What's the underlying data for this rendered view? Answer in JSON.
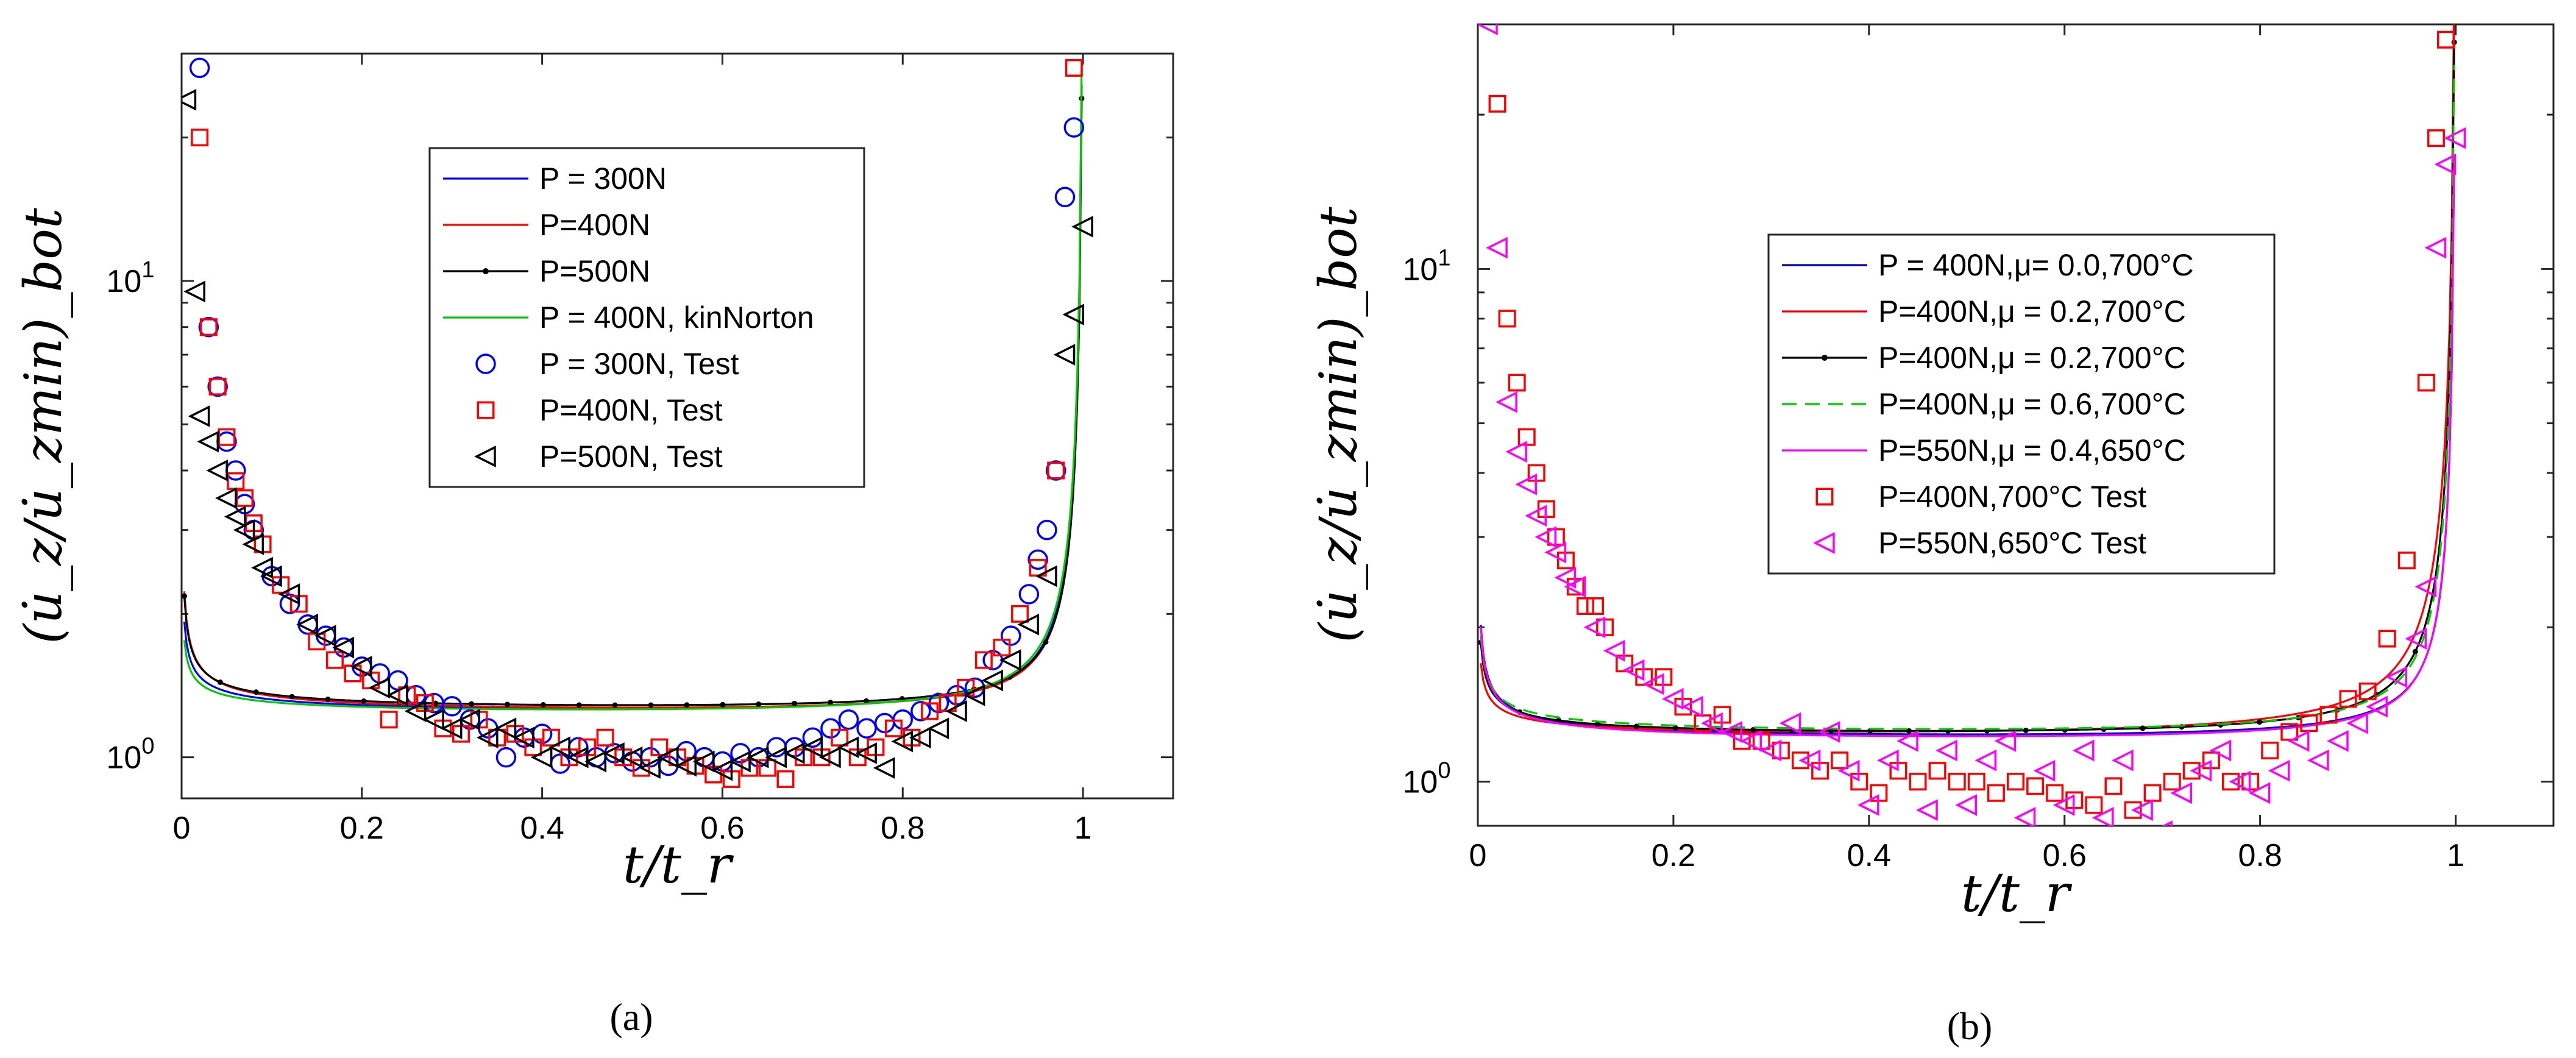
{
  "chart_data": [
    {
      "type": "line",
      "panel_label": "(a)",
      "xlabel": "t/t_r",
      "ylabel": "(u̇_z/u̇_zmin)_bot",
      "xlim": [
        0,
        1.1
      ],
      "ylim": [
        0.82,
        30
      ],
      "yscale": "log",
      "xticks": [
        0,
        0.2,
        0.4,
        0.6,
        0.8,
        1
      ],
      "xtick_labels": [
        "0",
        "0.2",
        "0.4",
        "0.6",
        "0.8",
        "1"
      ],
      "yticks_labeled": [
        {
          "value": 1,
          "base": "10",
          "exp": "0"
        },
        {
          "value": 10,
          "base": "10",
          "exp": "1"
        }
      ],
      "legend_position": "upper-center",
      "series": [
        {
          "name": "P = 300N",
          "kind": "line",
          "color": "#0000ff",
          "curve": {
            "A": 1.18,
            "B": 0.034,
            "C": 0.5,
            "D": 0.0118,
            "E": 1.15,
            "scale": 1.0
          }
        },
        {
          "name": "P=400N",
          "kind": "line",
          "color": "#ff0000",
          "curve": {
            "A": 1.18,
            "B": 0.036,
            "C": 0.55,
            "D": 0.0112,
            "E": 1.15,
            "scale": 1.0
          }
        },
        {
          "name": "P=500N",
          "kind": "line-dot",
          "color": "#000000",
          "curve": {
            "A": 1.2,
            "B": 0.033,
            "C": 0.55,
            "D": 0.0108,
            "E": 1.15,
            "scale": 1.0
          }
        },
        {
          "name": "P = 400N, kinNorton",
          "kind": "line",
          "color": "#00cc00",
          "curve": {
            "A": 1.17,
            "B": 0.036,
            "C": 0.45,
            "D": 0.013,
            "E": 1.15,
            "scale": 1.0
          }
        },
        {
          "name": "P = 300N, Test",
          "kind": "circle",
          "color": "#0000ff",
          "x": [
            0.02,
            0.03,
            0.04,
            0.05,
            0.06,
            0.07,
            0.08,
            0.1,
            0.12,
            0.14,
            0.16,
            0.18,
            0.2,
            0.22,
            0.24,
            0.26,
            0.28,
            0.3,
            0.32,
            0.34,
            0.36,
            0.38,
            0.4,
            0.42,
            0.44,
            0.46,
            0.48,
            0.5,
            0.52,
            0.54,
            0.56,
            0.58,
            0.6,
            0.62,
            0.64,
            0.66,
            0.68,
            0.7,
            0.72,
            0.74,
            0.76,
            0.78,
            0.8,
            0.82,
            0.84,
            0.86,
            0.88,
            0.9,
            0.92,
            0.94,
            0.95,
            0.96,
            0.97,
            0.98,
            0.99
          ],
          "y": [
            28,
            8,
            6,
            4.6,
            4,
            3.4,
            3,
            2.4,
            2.1,
            1.9,
            1.8,
            1.7,
            1.55,
            1.5,
            1.45,
            1.35,
            1.3,
            1.28,
            1.2,
            1.15,
            1.0,
            1.1,
            1.12,
            0.97,
            1.05,
            1.0,
            1.02,
            0.98,
            1.0,
            0.96,
            1.03,
            1.0,
            0.98,
            1.02,
            1.0,
            1.05,
            1.05,
            1.1,
            1.15,
            1.2,
            1.15,
            1.18,
            1.2,
            1.25,
            1.3,
            1.35,
            1.4,
            1.6,
            1.8,
            2.2,
            2.6,
            3.0,
            4.0,
            15,
            21
          ]
        },
        {
          "name": "P=400N, Test",
          "kind": "square",
          "color": "#ff0000",
          "x": [
            0.02,
            0.03,
            0.04,
            0.05,
            0.06,
            0.07,
            0.08,
            0.09,
            0.11,
            0.13,
            0.15,
            0.17,
            0.19,
            0.21,
            0.23,
            0.25,
            0.27,
            0.29,
            0.31,
            0.33,
            0.35,
            0.37,
            0.39,
            0.41,
            0.43,
            0.45,
            0.47,
            0.49,
            0.51,
            0.53,
            0.55,
            0.57,
            0.59,
            0.61,
            0.63,
            0.65,
            0.67,
            0.69,
            0.71,
            0.73,
            0.75,
            0.77,
            0.79,
            0.81,
            0.83,
            0.85,
            0.87,
            0.89,
            0.91,
            0.93,
            0.95,
            0.97,
            0.99
          ],
          "y": [
            20,
            8,
            6,
            4.7,
            3.8,
            3.5,
            3.1,
            2.8,
            2.3,
            2.1,
            1.75,
            1.6,
            1.5,
            1.45,
            1.2,
            1.35,
            1.3,
            1.15,
            1.12,
            1.2,
            1.1,
            1.12,
            1.05,
            1.1,
            1.0,
            1.05,
            1.1,
            1.0,
            0.95,
            1.05,
            1.0,
            0.96,
            0.92,
            0.9,
            0.95,
            0.95,
            0.9,
            1.0,
            1.0,
            1.1,
            1.0,
            1.05,
            1.15,
            1.1,
            1.25,
            1.3,
            1.4,
            1.6,
            1.7,
            2.0,
            2.5,
            4.0,
            28
          ]
        },
        {
          "name": "P=500N, Test",
          "kind": "triangle-left",
          "color": "#000000",
          "x": [
            0.005,
            0.015,
            0.02,
            0.03,
            0.04,
            0.05,
            0.06,
            0.07,
            0.08,
            0.09,
            0.1,
            0.12,
            0.14,
            0.16,
            0.18,
            0.2,
            0.22,
            0.24,
            0.26,
            0.28,
            0.3,
            0.32,
            0.34,
            0.36,
            0.38,
            0.4,
            0.42,
            0.44,
            0.46,
            0.48,
            0.5,
            0.52,
            0.54,
            0.56,
            0.58,
            0.6,
            0.62,
            0.64,
            0.66,
            0.68,
            0.7,
            0.72,
            0.74,
            0.76,
            0.78,
            0.8,
            0.82,
            0.84,
            0.86,
            0.88,
            0.9,
            0.92,
            0.94,
            0.96,
            0.98,
            0.99,
            1.0
          ],
          "y": [
            24,
            9.5,
            5.2,
            4.6,
            4.0,
            3.5,
            3.2,
            3.0,
            2.8,
            2.5,
            2.4,
            2.2,
            1.9,
            1.8,
            1.7,
            1.55,
            1.4,
            1.35,
            1.25,
            1.2,
            1.15,
            1.2,
            1.1,
            1.15,
            1.1,
            1.0,
            1.05,
            1.0,
            0.98,
            1.02,
            1.0,
            0.95,
            1.0,
            0.96,
            0.98,
            0.94,
            0.98,
            1.0,
            1.0,
            1.02,
            1.05,
            1.0,
            1.05,
            1.02,
            0.95,
            1.08,
            1.1,
            1.15,
            1.25,
            1.35,
            1.45,
            1.6,
            1.9,
            2.4,
            7,
            8.5,
            13
          ]
        }
      ]
    },
    {
      "type": "line",
      "panel_label": "(b)",
      "xlabel": "t/t_r",
      "ylabel": "(u̇_z/u̇_zmin)_bot",
      "xlim": [
        0,
        1.1
      ],
      "ylim": [
        0.82,
        30
      ],
      "yscale": "log",
      "xticks": [
        0,
        0.2,
        0.4,
        0.6,
        0.8,
        1
      ],
      "xtick_labels": [
        "0",
        "0.2",
        "0.4",
        "0.6",
        "0.8",
        "1"
      ],
      "yticks_labeled": [
        {
          "value": 1,
          "base": "10",
          "exp": "0"
        },
        {
          "value": 10,
          "base": "10",
          "exp": "1"
        }
      ],
      "legend_position": "upper-center",
      "series": [
        {
          "name": "P = 400N,μ= 0.0,700°C",
          "kind": "line",
          "color": "#0000bb",
          "curve": {
            "A": 1.16,
            "B": 0.03,
            "C": 0.55,
            "D": 0.0102,
            "E": 1.1,
            "scale": 1.0
          }
        },
        {
          "name": "P=400N,μ = 0.2,700°C",
          "kind": "line",
          "color": "#ff0000",
          "curve": {
            "A": 1.16,
            "B": 0.033,
            "C": 0.45,
            "D": 0.0165,
            "E": 1.15,
            "scale": 1.0
          }
        },
        {
          "name": "P=400N,μ = 0.2,700°C",
          "kind": "line-dot",
          "color": "#000000",
          "curve": {
            "A": 1.17,
            "B": 0.032,
            "C": 0.5,
            "D": 0.0128,
            "E": 1.15,
            "scale": 1.0
          }
        },
        {
          "name": "P=400N,μ = 0.6,700°C",
          "kind": "dashed",
          "color": "#00cc00",
          "curve": {
            "A": 1.18,
            "B": 0.034,
            "C": 0.5,
            "D": 0.0114,
            "E": 1.15,
            "scale": 1.0
          }
        },
        {
          "name": "P=550N,μ = 0.4,650°C",
          "kind": "line",
          "color": "#ff00ff",
          "curve": {
            "A": 1.15,
            "B": 0.03,
            "C": 0.55,
            "D": 0.0105,
            "E": 1.1,
            "scale": 1.0
          }
        },
        {
          "name": "P=400N,700°C Test",
          "kind": "square",
          "color": "#ff0000",
          "x": [
            0.02,
            0.03,
            0.04,
            0.05,
            0.06,
            0.07,
            0.08,
            0.09,
            0.1,
            0.11,
            0.12,
            0.13,
            0.15,
            0.17,
            0.19,
            0.21,
            0.23,
            0.25,
            0.27,
            0.29,
            0.31,
            0.33,
            0.35,
            0.37,
            0.39,
            0.41,
            0.43,
            0.45,
            0.47,
            0.49,
            0.51,
            0.53,
            0.55,
            0.57,
            0.59,
            0.61,
            0.63,
            0.65,
            0.67,
            0.69,
            0.71,
            0.73,
            0.75,
            0.77,
            0.79,
            0.81,
            0.83,
            0.85,
            0.87,
            0.89,
            0.91,
            0.93,
            0.95,
            0.97,
            0.98,
            0.99
          ],
          "y": [
            21,
            8,
            6,
            4.7,
            4.0,
            3.4,
            3.0,
            2.7,
            2.4,
            2.2,
            2.2,
            2.0,
            1.7,
            1.6,
            1.6,
            1.4,
            1.3,
            1.35,
            1.2,
            1.2,
            1.15,
            1.1,
            1.05,
            1.1,
            1.0,
            0.95,
            1.05,
            1.0,
            1.05,
            1.0,
            1.0,
            0.95,
            1.0,
            0.98,
            0.95,
            0.92,
            0.9,
            0.98,
            0.88,
            0.95,
            1.0,
            1.05,
            1.1,
            1.0,
            1.0,
            1.15,
            1.25,
            1.3,
            1.35,
            1.45,
            1.5,
            1.9,
            2.7,
            6,
            18,
            28
          ]
        },
        {
          "name": "P=550N,650°C Test",
          "kind": "triangle-left",
          "color": "#ff00ff",
          "x": [
            0.01,
            0.02,
            0.03,
            0.04,
            0.05,
            0.06,
            0.07,
            0.08,
            0.09,
            0.1,
            0.12,
            0.14,
            0.16,
            0.18,
            0.2,
            0.22,
            0.24,
            0.26,
            0.28,
            0.3,
            0.32,
            0.34,
            0.36,
            0.38,
            0.4,
            0.42,
            0.44,
            0.46,
            0.48,
            0.5,
            0.52,
            0.54,
            0.56,
            0.58,
            0.6,
            0.62,
            0.64,
            0.66,
            0.68,
            0.7,
            0.72,
            0.74,
            0.76,
            0.78,
            0.8,
            0.82,
            0.84,
            0.86,
            0.88,
            0.9,
            0.92,
            0.94,
            0.96,
            0.97,
            0.98,
            0.99,
            1.0
          ],
          "y": [
            30,
            11,
            5.5,
            4.4,
            3.8,
            3.3,
            3.0,
            2.8,
            2.5,
            2.4,
            2.0,
            1.8,
            1.65,
            1.55,
            1.45,
            1.4,
            1.3,
            1.25,
            1.2,
            1.15,
            1.3,
            1.1,
            1.25,
            1.05,
            0.9,
            1.1,
            1.2,
            0.88,
            1.15,
            0.9,
            1.1,
            1.2,
            0.85,
            1.05,
            0.9,
            1.15,
            0.85,
            1.1,
            0.88,
            0.8,
            0.95,
            1.05,
            1.15,
            1.0,
            0.95,
            1.05,
            1.2,
            1.1,
            1.2,
            1.3,
            1.4,
            1.6,
            1.9,
            2.4,
            11,
            16,
            18
          ]
        }
      ]
    }
  ]
}
